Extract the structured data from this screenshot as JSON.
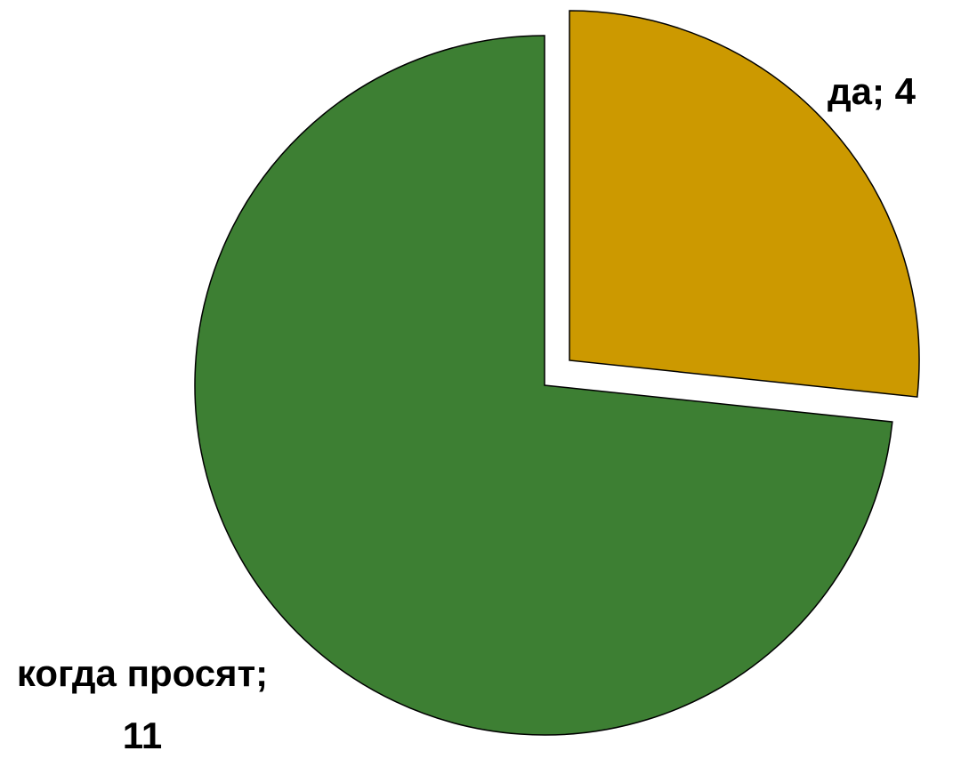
{
  "chart_data": {
    "type": "pie",
    "values": [
      4,
      11
    ],
    "value_labels": [
      "да; 4",
      "когда просят; 11"
    ],
    "colors": [
      "#cc9900",
      "#3d7f33"
    ]
  }
}
